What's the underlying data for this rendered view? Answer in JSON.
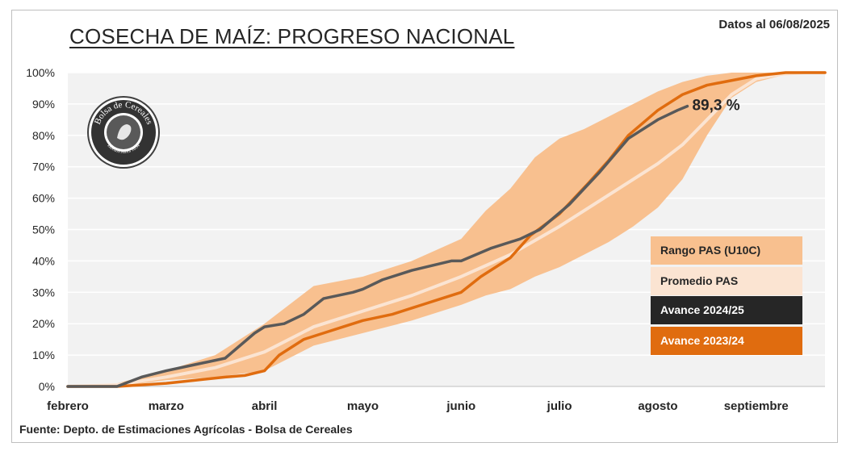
{
  "header": {
    "title": "COSECHA DE MAÍZ: PROGRESO NACIONAL",
    "date_note": "Datos al 06/08/2025"
  },
  "footer": {
    "source": "Fuente: Depto. de Estimaciones Agrícolas - Bolsa de Cereales"
  },
  "logo": {
    "text_top": "Bolsa de Cereales",
    "text_bottom": "Buenos Aires 1854"
  },
  "colors": {
    "plot_bg": "#f2f2f2",
    "gridline": "#ffffff",
    "range_band": "#f8c08f",
    "average": "#fbe4d2",
    "current": "#595959",
    "previous": "#e06c0f",
    "legend_current_bg": "#262626",
    "legend_previous_bg": "#e06c0f"
  },
  "chart_data": {
    "type": "line",
    "title": "COSECHA DE MAÍZ: PROGRESO NACIONAL",
    "x_unit": "month",
    "x_ticks": [
      "febrero",
      "marzo",
      "abril",
      "mayo",
      "junio",
      "julio",
      "agosto",
      "septiembre"
    ],
    "xlim": [
      0,
      7.7
    ],
    "ylim": [
      0,
      100
    ],
    "y_ticks": [
      "0%",
      "10%",
      "20%",
      "30%",
      "40%",
      "50%",
      "60%",
      "70%",
      "80%",
      "90%",
      "100%"
    ],
    "grid": "horizontal",
    "legend_position": "right",
    "annotation": "89,3 %",
    "series": [
      {
        "name": "Rango PAS (U10C)",
        "kind": "band",
        "x": [
          0,
          0.5,
          1.0,
          1.5,
          2.0,
          2.5,
          3.0,
          3.5,
          4.0,
          4.25,
          4.5,
          4.75,
          5.0,
          5.25,
          5.5,
          5.75,
          6.0,
          6.25,
          6.5,
          6.75,
          7.0,
          7.25,
          7.5,
          7.7
        ],
        "upper": [
          0,
          1,
          5,
          10,
          20,
          32,
          35,
          40,
          47,
          56,
          63,
          73,
          79,
          82,
          86,
          90,
          94,
          97,
          99,
          100,
          100,
          100,
          100,
          100
        ],
        "lower": [
          0,
          0,
          2,
          3,
          5,
          13,
          17,
          21,
          26,
          29,
          31,
          35,
          38,
          42,
          46,
          51,
          57,
          66,
          80,
          92,
          97,
          99,
          100,
          100
        ]
      },
      {
        "name": "Promedio PAS",
        "x": [
          0,
          0.5,
          1.0,
          1.5,
          2.0,
          2.5,
          3.0,
          3.5,
          4.0,
          4.5,
          5.0,
          5.5,
          6.0,
          6.25,
          6.5,
          6.75,
          7.0,
          7.25,
          7.5,
          7.7
        ],
        "values": [
          0,
          0.5,
          3,
          6,
          11,
          19,
          24,
          29,
          35,
          42,
          51,
          61,
          71,
          77,
          85,
          93,
          98,
          99.5,
          100,
          100
        ]
      },
      {
        "name": "Avance 2024/25",
        "x": [
          0,
          0.5,
          0.75,
          1.0,
          1.3,
          1.6,
          1.9,
          2.0,
          2.2,
          2.4,
          2.6,
          2.9,
          3.0,
          3.2,
          3.5,
          3.9,
          4.0,
          4.3,
          4.6,
          4.8,
          5.1,
          5.4,
          5.7,
          6.0,
          6.2,
          6.3
        ],
        "values": [
          0,
          0,
          3,
          5,
          7,
          9,
          17,
          19,
          20,
          23,
          28,
          30,
          31,
          34,
          37,
          40,
          40,
          44,
          47,
          50,
          58,
          68,
          79,
          85,
          88,
          89.3
        ]
      },
      {
        "name": "Avance 2023/24",
        "x": [
          0,
          0.5,
          1.0,
          1.3,
          1.6,
          1.8,
          2.0,
          2.15,
          2.4,
          2.6,
          2.8,
          3.0,
          3.3,
          3.6,
          3.8,
          4.0,
          4.2,
          4.5,
          4.7,
          5.0,
          5.3,
          5.5,
          5.7,
          6.0,
          6.25,
          6.5,
          7.0,
          7.3,
          7.7
        ],
        "values": [
          0,
          0,
          1,
          2,
          3,
          3.5,
          5,
          10,
          15,
          17,
          19,
          21,
          23,
          26,
          28,
          30,
          35,
          41,
          48,
          55,
          65,
          72,
          80,
          88,
          93,
          96,
          99,
          100,
          100
        ]
      }
    ],
    "legend": [
      {
        "label": "Rango PAS (U10C)"
      },
      {
        "label": "Promedio PAS"
      },
      {
        "label": "Avance 2024/25"
      },
      {
        "label": "Avance 2023/24"
      }
    ]
  }
}
